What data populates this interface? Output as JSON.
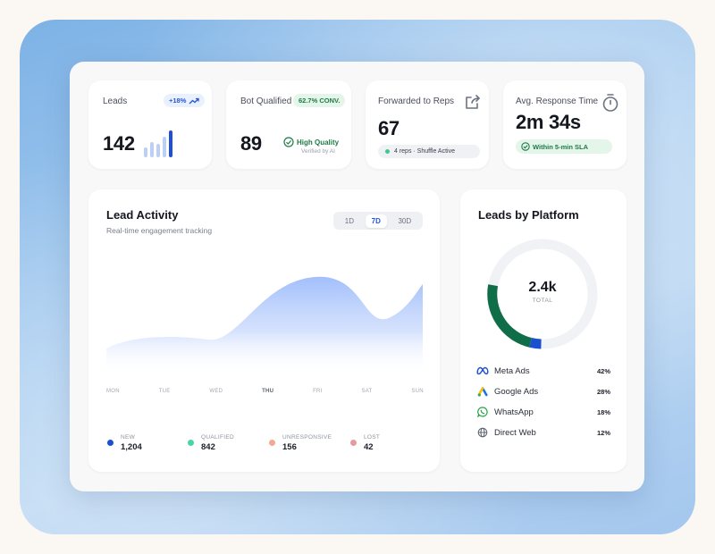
{
  "kpis": {
    "leads": {
      "title": "Leads",
      "value": "142",
      "badge": "+18%",
      "bars": [
        0.35,
        0.55,
        0.5,
        0.75,
        1.0
      ]
    },
    "bot": {
      "title": "Bot Qualified",
      "value": "89",
      "badge": "62.7% CONV.",
      "quality": "High Quality",
      "quality_sub": "Verified by AI"
    },
    "forwarded": {
      "title": "Forwarded to Reps",
      "value": "67",
      "status": "4 reps · Shuffle Active"
    },
    "response": {
      "title": "Avg. Response Time",
      "value": "2m 34s",
      "sla": "Within 5-min SLA"
    }
  },
  "activity": {
    "title": "Lead Activity",
    "subtitle": "Real-time engagement tracking",
    "ranges": [
      "1D",
      "7D",
      "30D"
    ],
    "active_range": "7D",
    "days": [
      "MON",
      "TUE",
      "WED",
      "THU",
      "FRI",
      "SAT",
      "SUN"
    ],
    "highlight_day": "THU",
    "legend": [
      {
        "label": "NEW",
        "value": "1,204",
        "color": "#1a4fd0"
      },
      {
        "label": "QUALIFIED",
        "value": "842",
        "color": "#48d6a3"
      },
      {
        "label": "UNRESPONSIVE",
        "value": "156",
        "color": "#f2a98e"
      },
      {
        "label": "LOST",
        "value": "42",
        "color": "#e89a9a"
      }
    ]
  },
  "platform": {
    "title": "Leads by Platform",
    "total": "2.4k",
    "total_label": "TOTAL",
    "items": [
      {
        "name": "Meta Ads",
        "pct": "42%",
        "icon": "meta-icon"
      },
      {
        "name": "Google Ads",
        "pct": "28%",
        "icon": "google-ads-icon"
      },
      {
        "name": "WhatsApp",
        "pct": "18%",
        "icon": "whatsapp-icon"
      },
      {
        "name": "Direct Web",
        "pct": "12%",
        "icon": "globe-icon"
      }
    ]
  },
  "colors": {
    "accent_blue": "#2455d8",
    "donut_green": "#0f6e48",
    "donut_blue": "#1a4fd0",
    "area_fill": "#a9c4fb"
  }
}
